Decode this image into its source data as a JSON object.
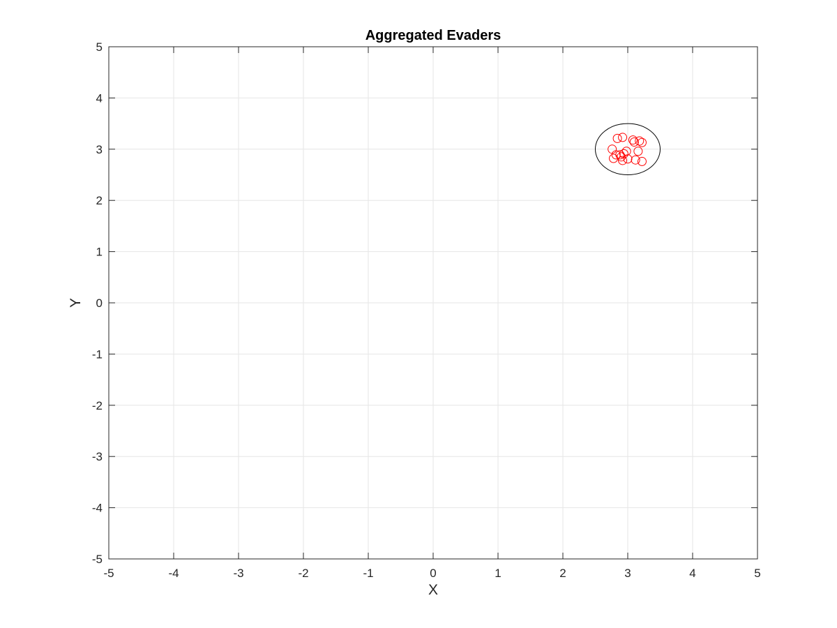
{
  "chart_data": {
    "type": "scatter",
    "title": "Aggregated Evaders",
    "xlabel": "X",
    "ylabel": "Y",
    "xlim": [
      -5,
      5
    ],
    "ylim": [
      -5,
      5
    ],
    "xticks": [
      "-5",
      "-4",
      "-3",
      "-2",
      "-1",
      "0",
      "1",
      "2",
      "3",
      "4",
      "5"
    ],
    "yticks": [
      "-5",
      "-4",
      "-3",
      "-2",
      "-1",
      "0",
      "1",
      "2",
      "3",
      "4",
      "5"
    ],
    "grid": true,
    "colors": {
      "points": "#ff0000",
      "boundary": "#000000",
      "grid": "#e6e6e6",
      "axes": "#262626"
    },
    "boundary_circle": {
      "center": [
        3,
        3
      ],
      "radius": 0.5
    },
    "series": [
      {
        "marker": "circle-open",
        "x": [
          2.84,
          2.92,
          2.76,
          3.08,
          3.18,
          3.22,
          3.1,
          2.98,
          3.16,
          2.82,
          2.78,
          2.88,
          2.94,
          2.9,
          3.0,
          2.92,
          3.12,
          3.22
        ],
        "y": [
          3.21,
          3.23,
          3.0,
          3.18,
          3.16,
          3.13,
          3.14,
          2.96,
          2.96,
          2.89,
          2.82,
          2.89,
          2.91,
          2.85,
          2.81,
          2.78,
          2.79,
          2.76
        ]
      }
    ]
  }
}
